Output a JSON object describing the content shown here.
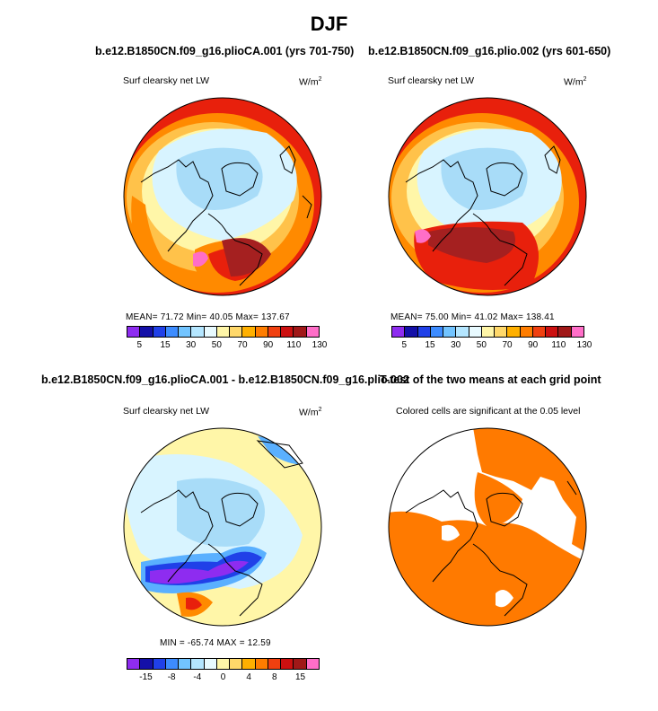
{
  "figure": {
    "title": "DJF",
    "colors": {
      "ocean_warm": "#e8200c",
      "dark_red": "#a52020",
      "orange": "#ff8a00",
      "light_orange": "#ffc24a",
      "pale_yellow": "#fff6a8",
      "pale_blue": "#d8f4ff",
      "light_blue": "#a8dcf8",
      "mid_blue": "#5ab0ff",
      "deep_blue": "#2040e8",
      "violet": "#8e2cf0",
      "pink": "#ff6ec8",
      "sig": "#ff7a00"
    }
  },
  "panels": {
    "p1": {
      "title": "b.e12.B1850CN.f09_g16.plioCA.001 (yrs 701-750)",
      "left_label": "Surf clearsky net LW",
      "units": "W/m",
      "units_sup": "2",
      "stats": "MEAN=  71.72   Min=  40.05   Max= 137.67"
    },
    "p2": {
      "title": "b.e12.B1850CN.f09_g16.plio.002 (yrs 601-650)",
      "left_label": "Surf clearsky net LW",
      "units": "W/m",
      "units_sup": "2",
      "stats": "MEAN=  75.00   Min=  41.02   Max= 138.41"
    },
    "p3": {
      "title": "b.e12.B1850CN.f09_g16.plioCA.001 - b.e12.B1850CN.f09_g16.plio.002",
      "left_label": "Surf clearsky net LW",
      "units": "W/m",
      "units_sup": "2",
      "stats": "MIN = -65.74  MAX =  12.59"
    },
    "p4": {
      "title": "T-test of the two means at each grid point",
      "left_label": "Colored cells are significant at the 0.05 level"
    }
  },
  "colorbars": {
    "abs": {
      "colors": [
        "#8e2cf0",
        "#1410a8",
        "#2040e8",
        "#3d8cff",
        "#72c4ff",
        "#b4e6ff",
        "#e8faff",
        "#fff6a8",
        "#ffd86a",
        "#ffb000",
        "#ff7d00",
        "#f04010",
        "#cc1010",
        "#a01818",
        "#ff6ec8"
      ],
      "labels": [
        "5",
        "15",
        "30",
        "50",
        "70",
        "90",
        "110",
        "130"
      ]
    },
    "diff": {
      "colors": [
        "#8e2cf0",
        "#1410a8",
        "#2040e8",
        "#3d8cff",
        "#72c4ff",
        "#b4e6ff",
        "#e8faff",
        "#fff6a8",
        "#ffd86a",
        "#ffb000",
        "#ff7d00",
        "#f04010",
        "#cc1010",
        "#a01818",
        "#ff6ec8"
      ],
      "labels": [
        "-15",
        "-8",
        "-4",
        "0",
        "4",
        "8",
        "15"
      ]
    }
  }
}
